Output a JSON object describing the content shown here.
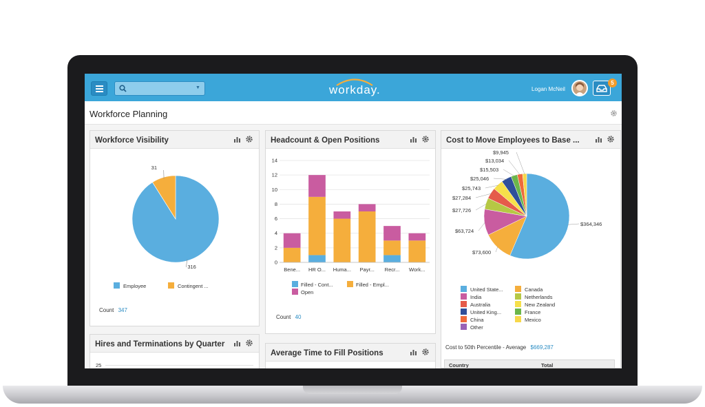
{
  "topbar": {
    "logo": "workday.",
    "user_name": "Logan McNeil",
    "inbox_count": "5",
    "accent": "#3ba6d9"
  },
  "page": {
    "title": "Workforce Planning"
  },
  "panels": {
    "workforce_visibility": {
      "title": "Workforce Visibility",
      "count_label": "Count",
      "count_value": "347",
      "chart_data": {
        "type": "pie",
        "slices": [
          {
            "label": "Employee",
            "value": 316,
            "color": "#5aaedf"
          },
          {
            "label": "Contingent ...",
            "value": 31,
            "color": "#f5ae3c"
          }
        ]
      }
    },
    "headcount": {
      "title": "Headcount & Open Positions",
      "count_label": "Count",
      "count_value": "40",
      "chart_data": {
        "type": "bar",
        "stacked": true,
        "categories": [
          "Bene...",
          "HR O...",
          "Huma...",
          "Payr...",
          "Recr...",
          "Work..."
        ],
        "ylim": [
          0,
          14
        ],
        "yticks": [
          0,
          2,
          4,
          6,
          8,
          10,
          12,
          14
        ],
        "series": [
          {
            "name": "Filled - Cont...",
            "color": "#5aaedf",
            "values": [
              0,
              1,
              0,
              0,
              1,
              0
            ]
          },
          {
            "name": "Filled - Empl...",
            "color": "#f5ae3c",
            "values": [
              2,
              8,
              6,
              7,
              2,
              3
            ]
          },
          {
            "name": "Open",
            "color": "#c95ca0",
            "values": [
              2,
              3,
              1,
              1,
              2,
              1
            ]
          }
        ]
      }
    },
    "cost": {
      "title": "Cost to Move Employees to Base ...",
      "footer_label": "Cost to 50th Percentile - Average",
      "footer_value": "$669,287",
      "table_headers": [
        "Country",
        "Total"
      ],
      "chart_data": {
        "type": "pie",
        "slices": [
          {
            "label": "United State...",
            "value": 364346,
            "text": "$364,346",
            "color": "#5aaedf"
          },
          {
            "label": "Canada",
            "value": 73600,
            "text": "$73,600",
            "color": "#f5ae3c"
          },
          {
            "label": "India",
            "value": 63724,
            "text": "$63,724",
            "color": "#c95ca0"
          },
          {
            "label": "Netherlands",
            "value": 27726,
            "text": "$27,726",
            "color": "#b6c844"
          },
          {
            "label": "Australia",
            "value": 27284,
            "text": "$27,284",
            "color": "#e55b4a"
          },
          {
            "label": "New Zealand",
            "value": 25743,
            "text": "$25,743",
            "color": "#f6e04a"
          },
          {
            "label": "United King...",
            "value": 25046,
            "text": "$25,046",
            "color": "#2f4f9a"
          },
          {
            "label": "France",
            "value": 15503,
            "text": "$15,503",
            "color": "#6bb64a"
          },
          {
            "label": "China",
            "value": 13034,
            "text": "$13,034",
            "color": "#ef6a3b"
          },
          {
            "label": "Mexico",
            "value": 9945,
            "text": "$9,945",
            "color": "#f7d84a"
          },
          {
            "label": "Other",
            "value": 0,
            "text": "",
            "color": "#9a62b6"
          }
        ]
      }
    },
    "hires": {
      "title": "Hires and Terminations by Quarter",
      "top_tick": "25"
    },
    "avg_time": {
      "title": "Average Time to Fill Positions"
    }
  }
}
